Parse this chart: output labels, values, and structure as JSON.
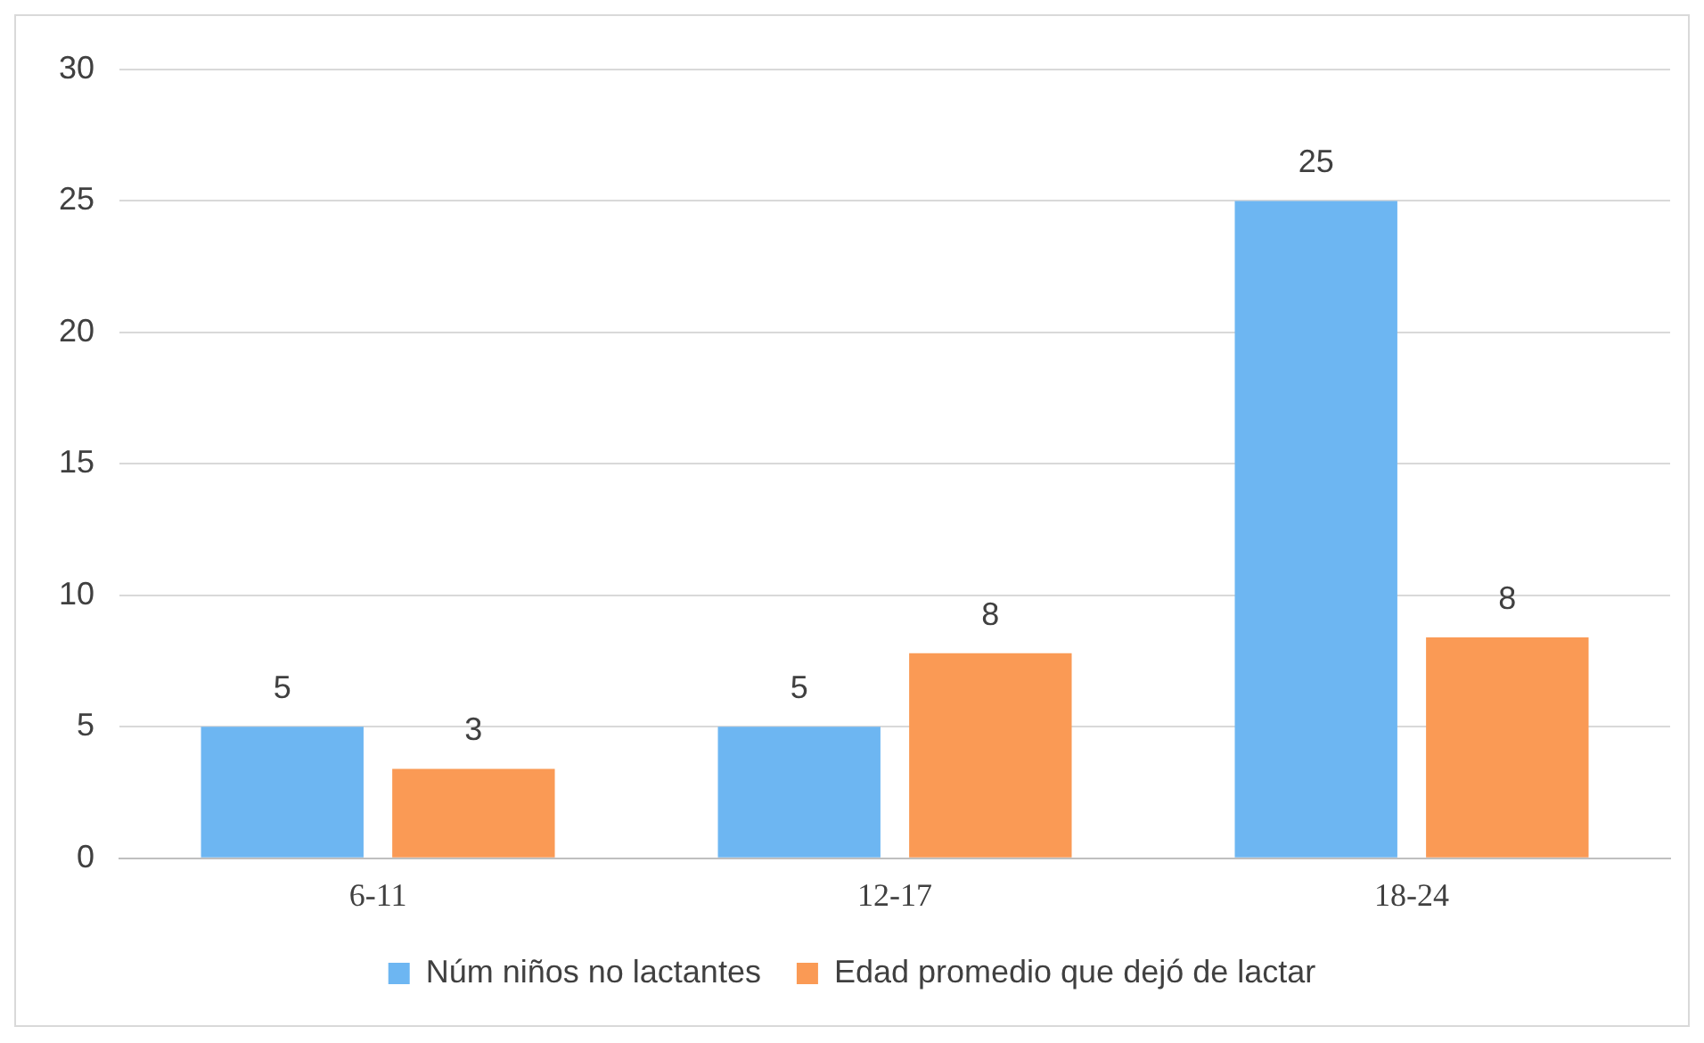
{
  "chart_data": {
    "type": "bar",
    "categories": [
      "6-11",
      "12-17",
      "18-24"
    ],
    "series": [
      {
        "name": "Núm niños no lactantes",
        "color": "#6db6f2",
        "values": [
          5,
          5,
          25
        ],
        "value_labels": [
          "5",
          "5",
          "25"
        ]
      },
      {
        "name": "Edad promedio que dejó de lactar",
        "color": "#fa9a55",
        "values": [
          3.4,
          7.8,
          8.4
        ],
        "value_labels": [
          "3",
          "8",
          "8"
        ]
      }
    ],
    "ylim": [
      0,
      30
    ],
    "yticks": [
      0,
      5,
      10,
      15,
      20,
      25,
      30
    ],
    "grid": "y",
    "legend": "bottom"
  }
}
